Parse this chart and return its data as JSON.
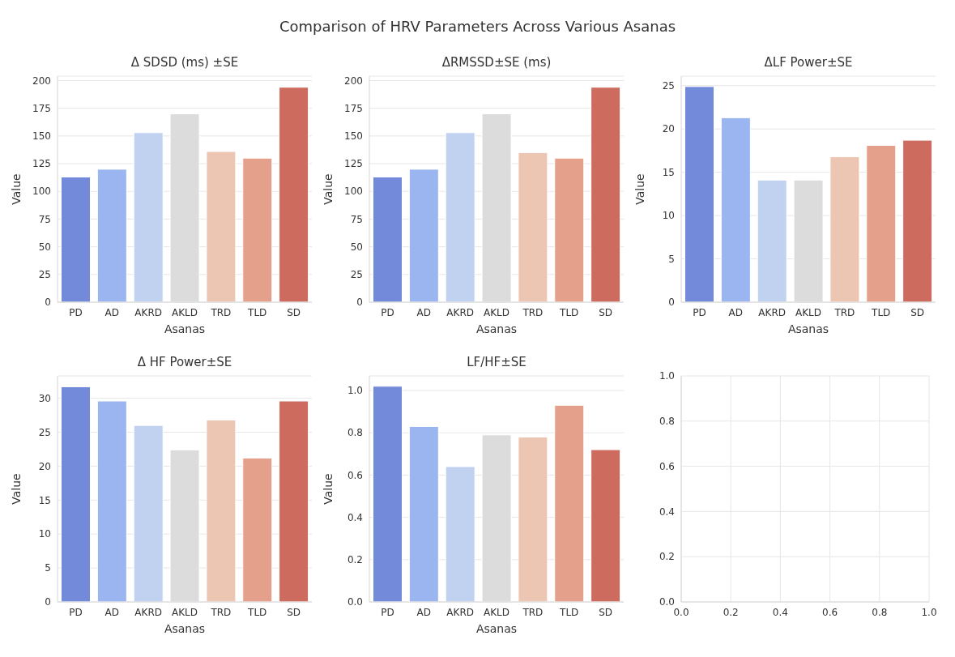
{
  "chart_data": [
    {
      "type": "bar",
      "title": "Δ SDSD (ms) ±SE",
      "xlabel": "Asanas",
      "ylabel": "Value",
      "annotations": [
        "Comparison of HRV Parameters Across Various Asanas"
      ],
      "categories": [
        "PD",
        "AD",
        "AKRD",
        "AKLD",
        "TRD",
        "TLD",
        "SD"
      ],
      "values": [
        113,
        120,
        153,
        170,
        136,
        130,
        194
      ],
      "colors": [
        "#7389da",
        "#9bb5f0",
        "#c1d2f0",
        "#dcdcdc",
        "#ecc5b3",
        "#e4a08a",
        "#cd6b5f"
      ],
      "ylim": [
        0,
        204
      ],
      "yticks": [
        0,
        25,
        50,
        75,
        100,
        125,
        150,
        175,
        200
      ],
      "grid": "y"
    },
    {
      "type": "bar",
      "title": "ΔRMSSD±SE (ms)",
      "xlabel": "Asanas",
      "ylabel": "Value",
      "categories": [
        "PD",
        "AD",
        "AKRD",
        "AKLD",
        "TRD",
        "TLD",
        "SD"
      ],
      "values": [
        113,
        120,
        153,
        170,
        135,
        130,
        194
      ],
      "colors": [
        "#7389da",
        "#9bb5f0",
        "#c1d2f0",
        "#dcdcdc",
        "#ecc5b3",
        "#e4a08a",
        "#cd6b5f"
      ],
      "ylim": [
        0,
        204
      ],
      "yticks": [
        0,
        25,
        50,
        75,
        100,
        125,
        150,
        175,
        200
      ],
      "grid": "y"
    },
    {
      "type": "bar",
      "title": "ΔLF Power±SE",
      "xlabel": "Asanas",
      "ylabel": "Value",
      "categories": [
        "PD",
        "AD",
        "AKRD",
        "AKLD",
        "TRD",
        "TLD",
        "SD"
      ],
      "values": [
        24.9,
        21.3,
        14.1,
        14.1,
        16.8,
        18.1,
        18.7
      ],
      "colors": [
        "#7389da",
        "#9bb5f0",
        "#c1d2f0",
        "#dcdcdc",
        "#ecc5b3",
        "#e4a08a",
        "#cd6b5f"
      ],
      "ylim": [
        0,
        26.1
      ],
      "yticks": [
        0,
        5,
        10,
        15,
        20,
        25
      ],
      "grid": "y"
    },
    {
      "type": "bar",
      "title": "Δ HF Power±SE",
      "xlabel": "Asanas",
      "ylabel": "Value",
      "categories": [
        "PD",
        "AD",
        "AKRD",
        "AKLD",
        "TRD",
        "TLD",
        "SD"
      ],
      "values": [
        31.7,
        29.6,
        26.0,
        22.4,
        26.8,
        21.2,
        29.6
      ],
      "colors": [
        "#7389da",
        "#9bb5f0",
        "#c1d2f0",
        "#dcdcdc",
        "#ecc5b3",
        "#e4a08a",
        "#cd6b5f"
      ],
      "ylim": [
        0,
        33.3
      ],
      "yticks": [
        0,
        5,
        10,
        15,
        20,
        25,
        30
      ],
      "grid": "y"
    },
    {
      "type": "bar",
      "title": "LF/HF±SE",
      "xlabel": "Asanas",
      "ylabel": "Value",
      "categories": [
        "PD",
        "AD",
        "AKRD",
        "AKLD",
        "TRD",
        "TLD",
        "SD"
      ],
      "values": [
        1.02,
        0.83,
        0.64,
        0.79,
        0.78,
        0.93,
        0.72
      ],
      "colors": [
        "#7389da",
        "#9bb5f0",
        "#c1d2f0",
        "#dcdcdc",
        "#ecc5b3",
        "#e4a08a",
        "#cd6b5f"
      ],
      "ylim": [
        0,
        1.069
      ],
      "yticks": [
        {
          "value": 0,
          "label": "0.0"
        },
        {
          "value": 0.2,
          "label": "0.2"
        },
        {
          "value": 0.4,
          "label": "0.4"
        },
        {
          "value": 0.6,
          "label": "0.6"
        },
        {
          "value": 0.8,
          "label": "0.8"
        },
        {
          "value": 1,
          "label": "1.0"
        }
      ],
      "grid": "y"
    },
    {
      "type": "scatter",
      "xlim": [
        0,
        1
      ],
      "ylim": [
        0,
        1
      ],
      "xticks": [
        {
          "value": 0,
          "label": "0.0"
        },
        {
          "value": 0.2,
          "label": "0.2"
        },
        {
          "value": 0.4,
          "label": "0.4"
        },
        {
          "value": 0.6,
          "label": "0.6"
        },
        {
          "value": 0.8,
          "label": "0.8"
        },
        {
          "value": 1,
          "label": "1.0"
        }
      ],
      "yticks": [
        {
          "value": 0,
          "label": "0.0"
        },
        {
          "value": 0.2,
          "label": "0.2"
        },
        {
          "value": 0.4,
          "label": "0.4"
        },
        {
          "value": 0.6,
          "label": "0.6"
        },
        {
          "value": 0.8,
          "label": "0.8"
        },
        {
          "value": 1,
          "label": "1.0"
        }
      ],
      "grid": true
    }
  ]
}
